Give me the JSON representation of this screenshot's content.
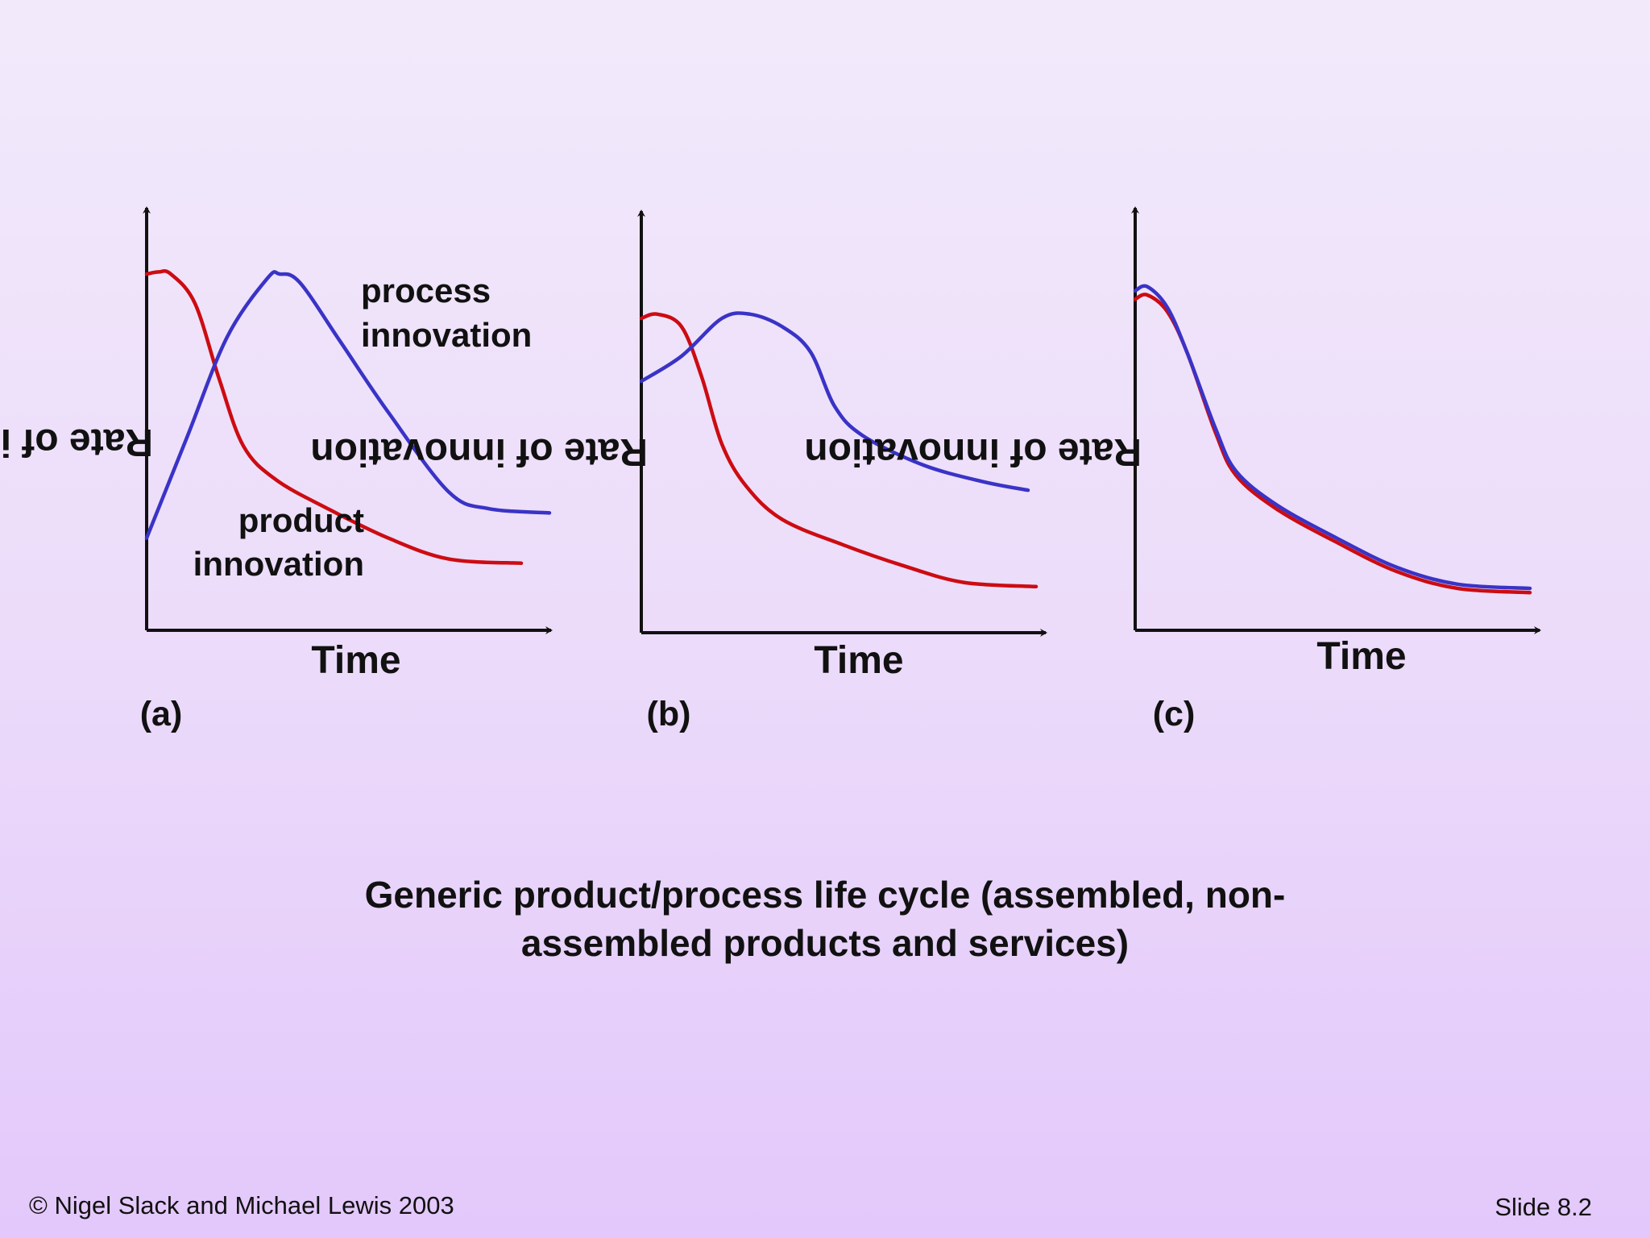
{
  "slide": {
    "caption_line1": "Generic product/process life cycle (assembled, non-",
    "caption_line2": "assembled products and services)",
    "copyright": "© Nigel Slack and Michael Lewis 2003",
    "slide_number": "Slide 8.2"
  },
  "colors": {
    "product": "#cc0c12",
    "process": "#3a33c6",
    "axis": "#111111"
  },
  "chart_data": [
    {
      "type": "line",
      "panel_label": "(a)",
      "xlabel": "Time",
      "ylabel": "Rate of innovation",
      "xlim": [
        0,
        10
      ],
      "ylim": [
        0,
        10
      ],
      "annotations": [
        "process",
        "innovation",
        "product",
        "innovation"
      ],
      "series": [
        {
          "name": "product innovation",
          "x": [
            0.0,
            0.3,
            0.6,
            1.2,
            1.8,
            2.4,
            3.2,
            4.5,
            6.0,
            7.5,
            9.3
          ],
          "values": [
            8.5,
            8.55,
            8.5,
            7.8,
            6.0,
            4.4,
            3.6,
            2.9,
            2.2,
            1.7,
            1.6
          ]
        },
        {
          "name": "process innovation",
          "x": [
            0.0,
            1.0,
            2.0,
            3.0,
            3.3,
            3.8,
            4.8,
            6.0,
            7.5,
            8.5,
            10.0
          ],
          "values": [
            2.2,
            4.6,
            7.0,
            8.4,
            8.5,
            8.3,
            6.9,
            5.2,
            3.3,
            2.9,
            2.8
          ]
        }
      ]
    },
    {
      "type": "line",
      "panel_label": "(b)",
      "xlabel": "Time",
      "ylabel": "Rate of innovation",
      "xlim": [
        0,
        10
      ],
      "ylim": [
        0,
        10
      ],
      "annotations": [],
      "series": [
        {
          "name": "product innovation",
          "x": [
            0.0,
            0.4,
            1.0,
            1.5,
            2.0,
            2.6,
            3.5,
            5.0,
            6.5,
            8.0,
            9.8
          ],
          "values": [
            7.5,
            7.6,
            7.3,
            6.1,
            4.5,
            3.5,
            2.7,
            2.1,
            1.6,
            1.2,
            1.1
          ]
        },
        {
          "name": "process innovation",
          "x": [
            0.0,
            1.0,
            2.0,
            2.7,
            3.5,
            4.2,
            4.8,
            5.5,
            7.0,
            8.5,
            9.6
          ],
          "values": [
            6.0,
            6.6,
            7.5,
            7.6,
            7.3,
            6.7,
            5.4,
            4.7,
            4.0,
            3.6,
            3.4
          ]
        }
      ]
    },
    {
      "type": "line",
      "panel_label": "(c)",
      "xlabel": "Time",
      "ylabel": "Rate of innovation",
      "xlim": [
        0,
        10
      ],
      "ylim": [
        0,
        10
      ],
      "annotations": [],
      "series": [
        {
          "name": "product innovation",
          "x": [
            0.0,
            0.3,
            0.8,
            1.3,
            2.0,
            2.5,
            3.5,
            5.0,
            6.5,
            8.0,
            9.8
          ],
          "values": [
            7.9,
            8.0,
            7.6,
            6.6,
            4.7,
            3.7,
            2.9,
            2.1,
            1.4,
            1.0,
            0.9
          ]
        },
        {
          "name": "process innovation",
          "x": [
            0.0,
            0.3,
            0.8,
            1.3,
            2.0,
            2.5,
            3.5,
            5.0,
            6.5,
            8.0,
            9.8
          ],
          "values": [
            8.1,
            8.2,
            7.7,
            6.6,
            4.8,
            3.8,
            3.0,
            2.2,
            1.5,
            1.1,
            1.0
          ]
        }
      ]
    }
  ]
}
